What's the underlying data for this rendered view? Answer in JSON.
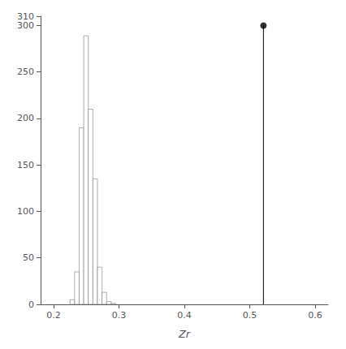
{
  "chart_data": {
    "type": "histogram",
    "xlabel": "Zr",
    "bins": [
      0.225,
      0.232,
      0.239,
      0.246,
      0.253,
      0.26,
      0.267,
      0.274,
      0.281,
      0.288,
      0.295
    ],
    "values": [
      5,
      35,
      190,
      289,
      210,
      135,
      40,
      13,
      3,
      1
    ],
    "color": "white",
    "xlim": [
      0.18,
      0.62
    ],
    "ylim": [
      0,
      310
    ],
    "xticks": [
      0.2,
      0.3,
      0.4,
      0.5,
      0.6
    ],
    "yticks": [
      0,
      50,
      100,
      150,
      200,
      250,
      300
    ],
    "observed": {
      "x": 0.521,
      "y": 300,
      "color": "black"
    },
    "grid": false
  }
}
